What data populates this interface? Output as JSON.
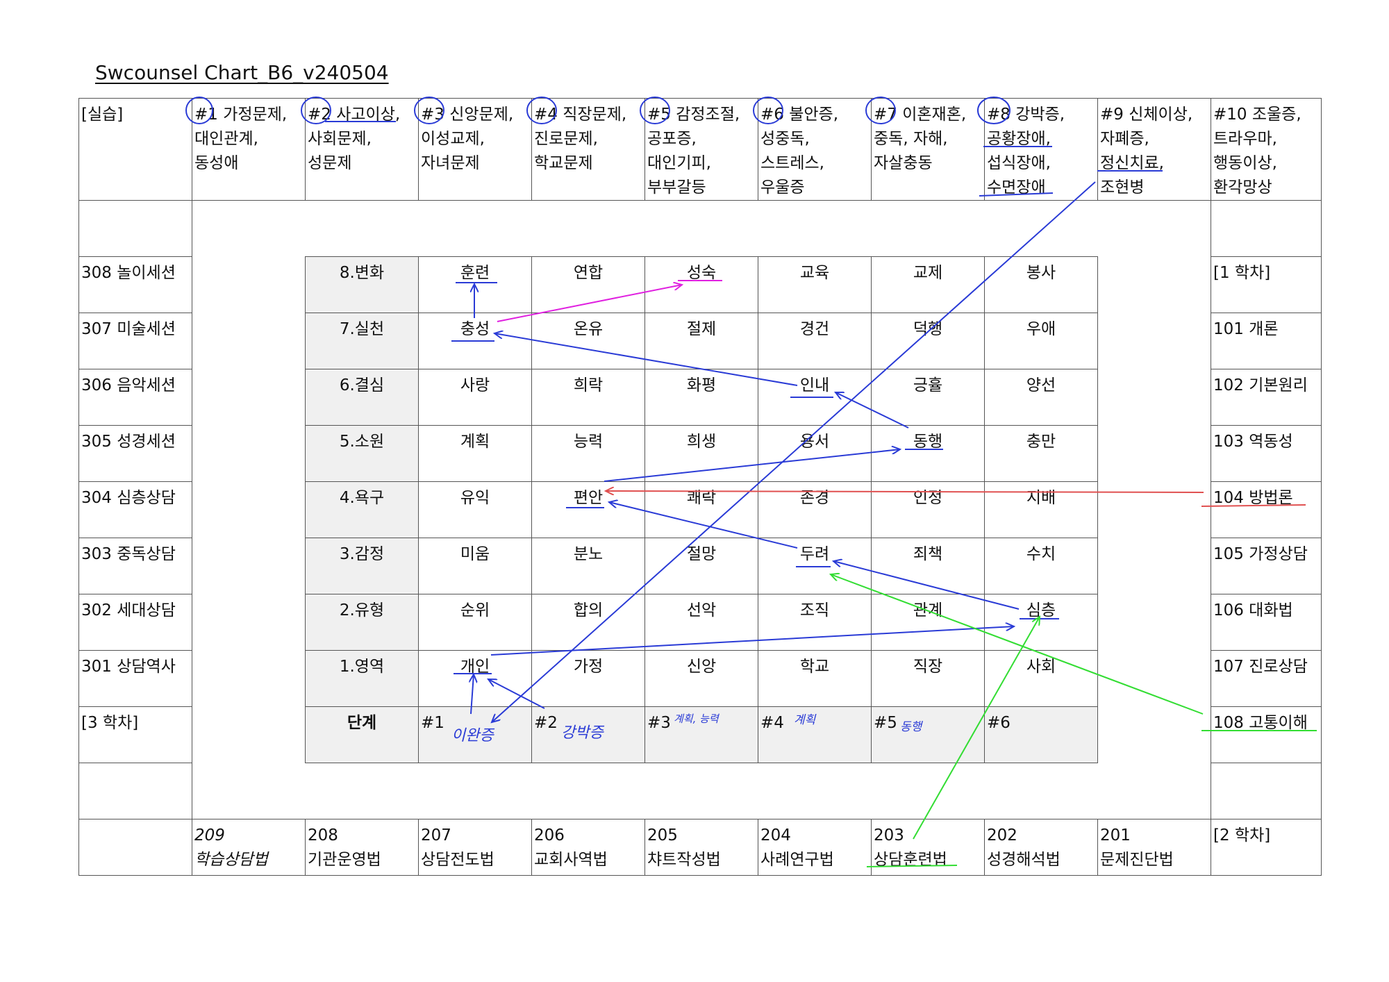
{
  "title": "Swcounsel Chart_B6_v240504",
  "header": {
    "corner": "[실습]",
    "problems": [
      [
        "#1 가정문제,",
        "대인관계,",
        "동성애"
      ],
      [
        "#2 사고이상,",
        "사회문제,",
        "성문제"
      ],
      [
        "#3 신앙문제,",
        "이성교제,",
        "자녀문제"
      ],
      [
        "#4 직장문제,",
        "진로문제,",
        "학교문제"
      ],
      [
        "#5 감정조절,",
        "공포증,",
        "대인기피,",
        "부부갈등"
      ],
      [
        "#6 불안증,",
        "성중독,",
        "스트레스,",
        "우울증"
      ],
      [
        "#7 이혼재혼,",
        "중독, 자해,",
        "자살충동"
      ],
      [
        "#8 강박증,",
        "공황장애,",
        "섭식장애,",
        "수면장애"
      ],
      [
        "#9 신체이상,",
        "자폐증,",
        "정신치료,",
        "조현병"
      ],
      [
        "#10 조울증,",
        "트라우마,",
        "행동이상,",
        "환각망상"
      ]
    ]
  },
  "left_column": [
    "308 놀이세션",
    "307 미술세션",
    "306 음악세션",
    "305 성경세션",
    "304 심층상담",
    "303 중독상담",
    "302 세대상담",
    "301 상담역사",
    "[3 학차]"
  ],
  "right_column": [
    "[1 학차]",
    "101 개론",
    "102 기본원리",
    "103 역동성",
    "104 방법론",
    "105 가정상담",
    "106 대화법",
    "107 진로상담",
    "108 고통이해"
  ],
  "bottom_row": [
    {
      "num": "209",
      "name": "학습상담법",
      "italic": true
    },
    {
      "num": "208",
      "name": "기관운영법"
    },
    {
      "num": "207",
      "name": "상담전도법"
    },
    {
      "num": "206",
      "name": "교회사역법"
    },
    {
      "num": "205",
      "name": "챠트작성법"
    },
    {
      "num": "204",
      "name": "사례연구법"
    },
    {
      "num": "203",
      "name": "상담훈련법"
    },
    {
      "num": "202",
      "name": "성경해석법"
    },
    {
      "num": "201",
      "name": "문제진단법"
    },
    {
      "num": "",
      "name": "[2 학차]"
    }
  ],
  "stages": [
    {
      "label": "8.변화",
      "cells": [
        "훈련",
        "연합",
        "성숙",
        "교육",
        "교제",
        "봉사"
      ]
    },
    {
      "label": "7.실천",
      "cells": [
        "충성",
        "온유",
        "절제",
        "경건",
        "덕행",
        "우애"
      ]
    },
    {
      "label": "6.결심",
      "cells": [
        "사랑",
        "희락",
        "화평",
        "인내",
        "긍휼",
        "양선"
      ]
    },
    {
      "label": "5.소원",
      "cells": [
        "계획",
        "능력",
        "희생",
        "용서",
        "동행",
        "충만"
      ]
    },
    {
      "label": "4.욕구",
      "cells": [
        "유익",
        "편안",
        "쾌락",
        "존경",
        "인정",
        "지배"
      ]
    },
    {
      "label": "3.감정",
      "cells": [
        "미움",
        "분노",
        "절망",
        "두려",
        "죄책",
        "수치"
      ]
    },
    {
      "label": "2.유형",
      "cells": [
        "순위",
        "합의",
        "선악",
        "조직",
        "관계",
        "심층"
      ]
    },
    {
      "label": "1.영역",
      "cells": [
        "개인",
        "가정",
        "신앙",
        "학교",
        "직장",
        "사회"
      ]
    }
  ],
  "stage_footer": {
    "label": "단계",
    "cases": [
      "#1",
      "#2",
      "#3",
      "#4",
      "#5",
      "#6"
    ]
  },
  "handwritten": [
    "이완증",
    "강박증",
    "계획, 능력",
    "계획",
    "동행"
  ],
  "colors": {
    "blue": "#2a3bd6",
    "magenta": "#e020e0",
    "red": "#e05050",
    "green": "#33dd33"
  }
}
